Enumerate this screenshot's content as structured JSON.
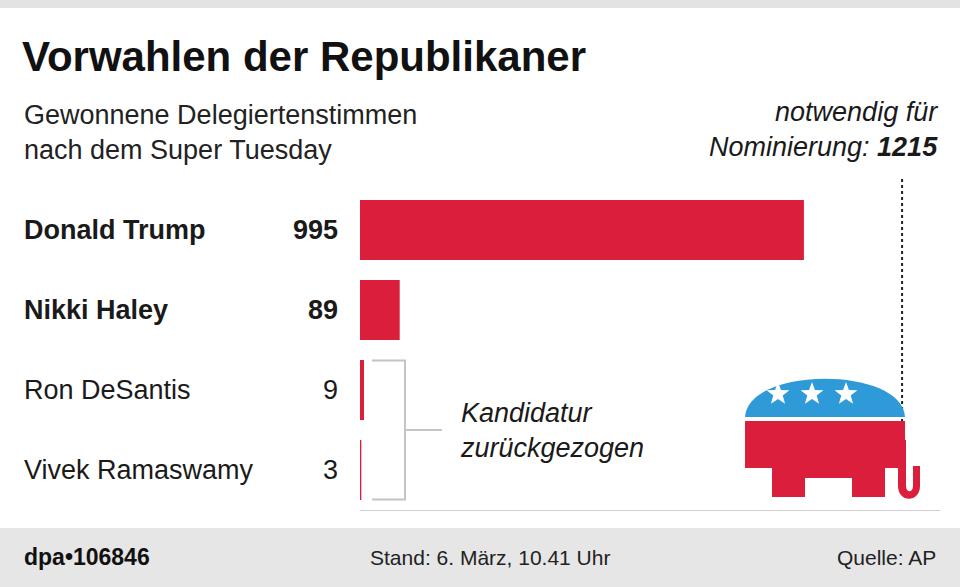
{
  "chart_data": {
    "type": "bar",
    "orientation": "horizontal",
    "title": "Vorwahlen der Republikaner",
    "subtitle": "Gewonnene Delegiertenstimmen\nnach dem Super Tuesday",
    "categories": [
      "Donald Trump",
      "Nikki Haley",
      "Ron DeSantis",
      "Vivek Ramaswamy"
    ],
    "values": [
      995,
      89,
      9,
      3
    ],
    "color": "#dc1e3d",
    "xlim": [
      0,
      1300
    ],
    "xticks": [],
    "grid": false,
    "data_labels": true,
    "tick_labels": false,
    "annotations": [
      {
        "text": "notwendig für\nNominierung:",
        "value": 1215
      },
      {
        "text": "Kandidatur\nzurückgezogen",
        "categories": [
          "Ron DeSantis",
          "Vivek Ramaswamy"
        ]
      }
    ],
    "footer": {
      "id": "dpa•106846",
      "date": "Stand: 6. März, 10.41 Uhr",
      "source": "Quelle: AP"
    }
  }
}
